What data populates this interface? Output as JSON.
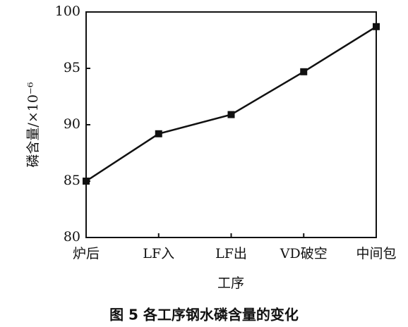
{
  "chart_data": {
    "type": "line",
    "caption": "图 5  各工序钢水磷含量的变化",
    "x_label": "工序",
    "y_label": "磷含量/×10⁻⁶",
    "categories": [
      "炉后",
      "LF入",
      "LF出",
      "VD破空",
      "中间包"
    ],
    "series": [
      {
        "color": "#111111",
        "values": [
          85.0,
          89.2,
          90.9,
          94.7,
          98.7
        ]
      }
    ],
    "ylim": [
      80,
      100
    ],
    "yticks": [
      80,
      85,
      90,
      95,
      100
    ]
  }
}
